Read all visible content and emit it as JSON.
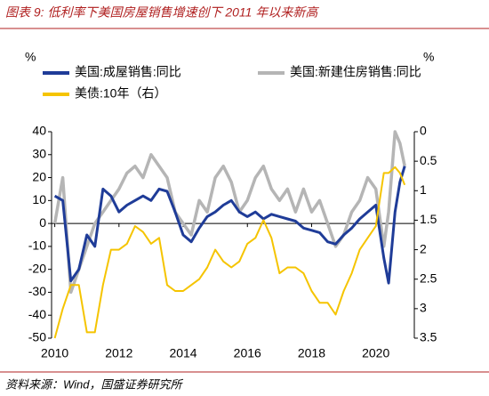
{
  "chart_data": {
    "type": "line",
    "title": "图表 9:  低利率下美国房屋销售增速创下 2011 年以来新高",
    "source": "资料来源：Wind，国盛证券研究所",
    "y_label": "%",
    "y2_label": "%",
    "x": [
      2010,
      2010.25,
      2010.5,
      2010.75,
      2011,
      2011.25,
      2011.5,
      2011.75,
      2012,
      2012.25,
      2012.5,
      2012.75,
      2013,
      2013.25,
      2013.5,
      2013.75,
      2014,
      2014.25,
      2014.5,
      2014.75,
      2015,
      2015.25,
      2015.5,
      2015.75,
      2016,
      2016.25,
      2016.5,
      2016.75,
      2017,
      2017.25,
      2017.5,
      2017.75,
      2018,
      2018.25,
      2018.5,
      2018.75,
      2019,
      2019.25,
      2019.5,
      2019.75,
      2020,
      2020.25,
      2020.4,
      2020.6,
      2020.75,
      2020.9
    ],
    "xlim": [
      2009.9,
      2021.2
    ],
    "xticks": [
      2010,
      2012,
      2014,
      2016,
      2018,
      2020
    ],
    "ylim": [
      -50,
      40
    ],
    "yticks": [
      -50,
      -40,
      -30,
      -20,
      -10,
      0,
      10,
      20,
      30,
      40
    ],
    "y2lim": [
      0,
      3.5
    ],
    "y2_inverted": true,
    "y2ticks": [
      0,
      0.5,
      1,
      1.5,
      2,
      2.5,
      3,
      3.5
    ],
    "legend": "top",
    "series": [
      {
        "name": "美国:成屋销售:同比",
        "color": "#1f3c98",
        "values": [
          12,
          10,
          -25,
          -20,
          -5,
          -10,
          15,
          12,
          5,
          8,
          10,
          12,
          10,
          15,
          14,
          5,
          -5,
          -8,
          -2,
          3,
          5,
          8,
          10,
          5,
          3,
          5,
          2,
          4,
          3,
          2,
          1,
          -2,
          -3,
          -4,
          -8,
          -9,
          -5,
          -2,
          2,
          5,
          8,
          -15,
          -26,
          5,
          18,
          25
        ]
      },
      {
        "name": "美国:新建住房销售:同比",
        "color": "#b5b5b5",
        "values": [
          0,
          20,
          -30,
          -20,
          -10,
          0,
          5,
          10,
          15,
          22,
          25,
          20,
          30,
          25,
          20,
          5,
          0,
          -5,
          10,
          5,
          20,
          25,
          18,
          5,
          10,
          20,
          25,
          15,
          10,
          15,
          5,
          15,
          5,
          10,
          0,
          -10,
          -5,
          5,
          10,
          20,
          15,
          -10,
          5,
          40,
          35,
          25
        ]
      },
      {
        "name": "美债:10年（右）",
        "color": "#f5c400",
        "axis": "y2",
        "values": [
          3.5,
          3.0,
          2.6,
          2.6,
          3.4,
          3.4,
          2.6,
          2.0,
          2.0,
          1.9,
          1.6,
          1.7,
          1.9,
          1.8,
          2.6,
          2.7,
          2.7,
          2.6,
          2.5,
          2.3,
          2.0,
          2.2,
          2.3,
          2.2,
          1.9,
          1.8,
          1.5,
          1.8,
          2.4,
          2.3,
          2.3,
          2.4,
          2.7,
          2.9,
          2.9,
          3.1,
          2.7,
          2.4,
          2.0,
          1.8,
          1.6,
          0.7,
          0.7,
          0.6,
          0.7,
          0.9
        ]
      }
    ]
  }
}
